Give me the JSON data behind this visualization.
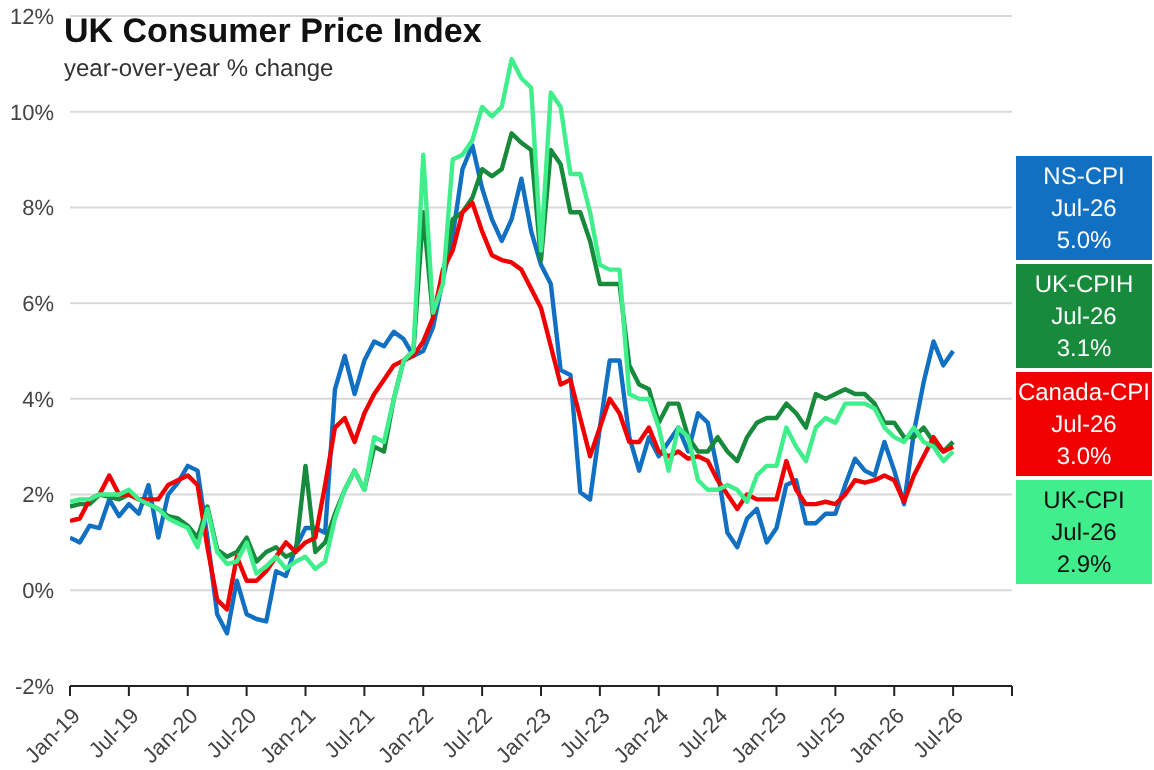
{
  "chart_data": {
    "type": "line",
    "title": "UK Consumer Price Index",
    "subtitle": "year-over-year % change",
    "x": [
      "2019-01",
      "2019-02",
      "2019-03",
      "2019-04",
      "2019-05",
      "2019-06",
      "2019-07",
      "2019-08",
      "2019-09",
      "2019-10",
      "2019-11",
      "2019-12",
      "2020-01",
      "2020-02",
      "2020-03",
      "2020-04",
      "2020-05",
      "2020-06",
      "2020-07",
      "2020-08",
      "2020-09",
      "2020-10",
      "2020-11",
      "2020-12",
      "2021-01",
      "2021-02",
      "2021-03",
      "2021-04",
      "2021-05",
      "2021-06",
      "2021-07",
      "2021-08",
      "2021-09",
      "2021-10",
      "2021-11",
      "2021-12",
      "2022-01",
      "2022-02",
      "2022-03",
      "2022-04",
      "2022-05",
      "2022-06",
      "2022-07",
      "2022-08",
      "2022-09",
      "2022-10",
      "2022-11",
      "2022-12",
      "2023-01",
      "2023-02",
      "2023-03",
      "2023-04",
      "2023-05",
      "2023-06",
      "2023-07",
      "2023-08",
      "2023-09",
      "2023-10",
      "2023-11",
      "2023-12",
      "2024-01",
      "2024-02",
      "2024-03",
      "2024-04",
      "2024-05",
      "2024-06",
      "2024-07",
      "2024-08",
      "2024-09",
      "2024-10",
      "2024-11",
      "2024-12",
      "2025-01",
      "2025-02",
      "2025-03",
      "2025-04",
      "2025-05",
      "2025-06",
      "2025-07",
      "2025-08",
      "2025-09",
      "2025-10",
      "2025-11",
      "2025-12",
      "2026-01",
      "2026-02",
      "2026-03",
      "2026-04",
      "2026-05",
      "2026-06",
      "2026-07"
    ],
    "series": [
      {
        "name": "NS-CPI",
        "color": "#1170c2",
        "values": [
          1.1,
          1.0,
          1.35,
          1.3,
          1.9,
          1.55,
          1.8,
          1.6,
          2.2,
          1.1,
          2.0,
          2.25,
          2.6,
          2.5,
          1.1,
          -0.5,
          -0.9,
          0.2,
          -0.5,
          -0.6,
          -0.65,
          0.4,
          0.3,
          0.9,
          1.3,
          1.3,
          1.2,
          4.2,
          4.9,
          4.1,
          4.8,
          5.2,
          5.1,
          5.4,
          5.25,
          4.9,
          5.0,
          5.5,
          6.5,
          7.4,
          8.8,
          9.3,
          8.4,
          7.75,
          7.3,
          7.75,
          8.6,
          7.5,
          6.8,
          6.4,
          4.6,
          4.5,
          2.05,
          1.9,
          3.4,
          4.8,
          4.8,
          3.2,
          2.5,
          3.2,
          2.8,
          3.1,
          3.4,
          2.9,
          3.7,
          3.5,
          2.5,
          1.2,
          0.9,
          1.5,
          1.7,
          1.0,
          1.3,
          2.2,
          2.3,
          1.4,
          1.4,
          1.6,
          1.6,
          2.2,
          2.75,
          2.5,
          2.4,
          3.1,
          2.5,
          1.8,
          3.3,
          4.35,
          5.2,
          4.7,
          5.0
        ]
      },
      {
        "name": "UK-CPIH",
        "color": "#178a3c",
        "values": [
          1.75,
          1.8,
          1.8,
          2.0,
          1.95,
          1.9,
          2.0,
          1.9,
          1.8,
          1.7,
          1.55,
          1.5,
          1.35,
          1.1,
          1.75,
          0.85,
          0.7,
          0.8,
          1.1,
          0.6,
          0.8,
          0.9,
          0.7,
          0.8,
          2.6,
          0.8,
          1.0,
          1.6,
          2.1,
          2.5,
          2.1,
          3.0,
          2.9,
          4.0,
          4.8,
          5.0,
          7.9,
          5.7,
          6.6,
          7.75,
          7.9,
          8.2,
          8.8,
          8.65,
          8.8,
          9.55,
          9.35,
          9.2,
          6.9,
          9.2,
          8.9,
          7.9,
          7.9,
          7.3,
          6.4,
          6.4,
          6.4,
          4.7,
          4.3,
          4.2,
          3.5,
          3.9,
          3.9,
          3.2,
          2.9,
          2.9,
          3.2,
          2.9,
          2.7,
          3.2,
          3.5,
          3.6,
          3.6,
          3.9,
          3.7,
          3.4,
          4.1,
          4.0,
          4.1,
          4.2,
          4.1,
          4.1,
          3.9,
          3.5,
          3.5,
          3.2,
          3.2,
          3.4,
          3.1,
          2.9,
          3.1
        ]
      },
      {
        "name": "Canada-CPI",
        "color": "#f00000",
        "values": [
          1.45,
          1.5,
          1.9,
          2.0,
          2.4,
          2.0,
          2.0,
          1.9,
          1.9,
          1.9,
          2.2,
          2.3,
          2.4,
          2.2,
          0.9,
          -0.2,
          -0.4,
          0.7,
          0.2,
          0.2,
          0.4,
          0.7,
          1.0,
          0.8,
          1.0,
          1.1,
          2.2,
          3.4,
          3.6,
          3.1,
          3.7,
          4.1,
          4.4,
          4.7,
          4.8,
          4.9,
          5.2,
          5.7,
          6.7,
          7.1,
          7.9,
          8.1,
          7.5,
          7.0,
          6.9,
          6.85,
          6.7,
          6.3,
          5.9,
          5.1,
          4.3,
          4.4,
          3.6,
          2.8,
          3.4,
          4.0,
          3.7,
          3.1,
          3.1,
          3.4,
          2.9,
          2.8,
          2.9,
          2.75,
          2.8,
          2.7,
          2.3,
          2.0,
          1.7,
          2.0,
          1.9,
          1.9,
          1.9,
          2.7,
          2.1,
          1.8,
          1.8,
          1.85,
          1.8,
          2.0,
          2.3,
          2.25,
          2.3,
          2.4,
          2.3,
          1.85,
          2.4,
          2.8,
          3.2,
          2.9,
          3.0
        ]
      },
      {
        "name": "UK-CPI",
        "color": "#40ee8c",
        "values": [
          1.85,
          1.9,
          1.9,
          2.0,
          2.0,
          2.0,
          2.1,
          1.9,
          1.8,
          1.7,
          1.5,
          1.4,
          1.3,
          0.9,
          1.7,
          0.8,
          0.55,
          0.6,
          1.0,
          0.35,
          0.5,
          0.7,
          0.45,
          0.6,
          0.7,
          0.45,
          0.6,
          1.5,
          2.1,
          2.5,
          2.1,
          3.2,
          3.1,
          4.0,
          4.8,
          5.0,
          9.1,
          5.8,
          6.4,
          9.0,
          9.1,
          9.4,
          10.1,
          9.9,
          10.1,
          11.1,
          10.7,
          10.5,
          7.1,
          10.4,
          10.1,
          8.7,
          8.7,
          7.9,
          6.8,
          6.7,
          6.7,
          4.1,
          4.0,
          4.0,
          3.4,
          2.5,
          3.4,
          3.2,
          2.3,
          2.1,
          2.1,
          2.2,
          2.1,
          1.85,
          2.4,
          2.6,
          2.6,
          3.4,
          3.0,
          2.7,
          3.4,
          3.6,
          3.5,
          3.9,
          3.9,
          3.9,
          3.8,
          3.4,
          3.2,
          3.1,
          3.4,
          3.1,
          3.0,
          2.7,
          2.9
        ]
      }
    ],
    "annotations": [
      "Jul-26 5.0%",
      "Jul-26 3.1%",
      "Jul-26 3.0%",
      "Jul-26 2.9%"
    ],
    "xlim": [
      "2019-01",
      "2027-01"
    ],
    "xticks": [
      {
        "value": "2019-01",
        "label": "Jan-19"
      },
      {
        "value": "2019-07",
        "label": "Jul-19"
      },
      {
        "value": "2020-01",
        "label": "Jan-20"
      },
      {
        "value": "2020-07",
        "label": "Jul-20"
      },
      {
        "value": "2021-01",
        "label": "Jan-21"
      },
      {
        "value": "2021-07",
        "label": "Jul-21"
      },
      {
        "value": "2022-01",
        "label": "Jan-22"
      },
      {
        "value": "2022-07",
        "label": "Jul-22"
      },
      {
        "value": "2023-01",
        "label": "Jan-23"
      },
      {
        "value": "2023-07",
        "label": "Jul-23"
      },
      {
        "value": "2024-01",
        "label": "Jan-24"
      },
      {
        "value": "2024-07",
        "label": "Jul-24"
      },
      {
        "value": "2025-01",
        "label": "Jan-25"
      },
      {
        "value": "2025-07",
        "label": "Jul-25"
      },
      {
        "value": "2026-01",
        "label": "Jan-26"
      },
      {
        "value": "2026-07",
        "label": "Jul-26"
      },
      {
        "value": "2027-01",
        "label": null
      }
    ],
    "ylim": [
      -2,
      12
    ],
    "yticks": [
      {
        "value": -2,
        "label": "-2%"
      },
      {
        "value": 0,
        "label": "0%"
      },
      {
        "value": 2,
        "label": "2%"
      },
      {
        "value": 4,
        "label": "4%"
      },
      {
        "value": 6,
        "label": "6%"
      },
      {
        "value": 8,
        "label": "8%"
      },
      {
        "value": 10,
        "label": "10%"
      },
      {
        "value": 12,
        "label": "12%"
      }
    ],
    "grid": "y",
    "legend": "right",
    "marker": "none",
    "line_style": "solid"
  }
}
